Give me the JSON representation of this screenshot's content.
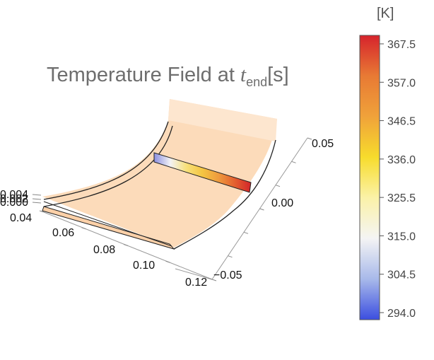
{
  "chart_data": {
    "type": "surface3d",
    "title_prefix": "Temperature Field at ",
    "title_var": "t",
    "title_sub": "end",
    "title_suffix": "[s]",
    "axes": {
      "left_ticks": [
        "0.004",
        "0.002",
        "0.000"
      ],
      "front_ticks": [
        "0.04",
        "0.06",
        "0.08",
        "0.10",
        "0.12"
      ],
      "right_ticks": [
        "0.05",
        "0.00",
        "−0.05"
      ]
    },
    "colorbar": {
      "unit": "[K]",
      "min": 294.0,
      "max": 367.5,
      "ticks": [
        "367.5",
        "357.0",
        "346.5",
        "336.0",
        "325.5",
        "315.0",
        "304.5",
        "294.0"
      ],
      "gradient": [
        "#3b4ee0",
        "#a8b9ea",
        "#f4f4f4",
        "#fbf2a8",
        "#f7dc2c",
        "#f0a23a",
        "#e87a34",
        "#d6232c"
      ]
    },
    "slice_colors": [
      "#8c8fe0",
      "#f2f2f5",
      "#f7e07a",
      "#f4c542",
      "#ee9a3e",
      "#e35f2f",
      "#d3252a"
    ],
    "surface_color": "#fcd9b6"
  }
}
